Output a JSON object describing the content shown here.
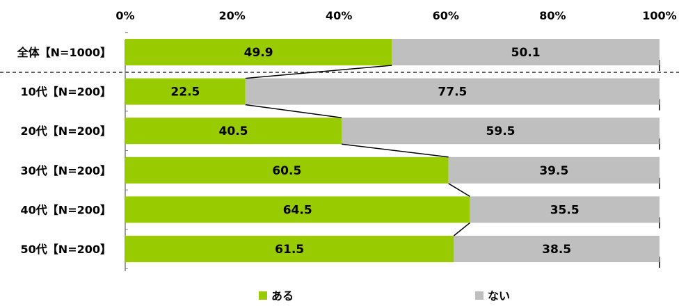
{
  "chart_data": {
    "type": "bar",
    "stacked": true,
    "orientation": "horizontal",
    "percent": true,
    "categories": [
      "全体【N=1000】",
      "10代【N=200】",
      "20代【N=200】",
      "30代【N=200】",
      "40代【N=200】",
      "50代【N=200】"
    ],
    "series": [
      {
        "name": "ある",
        "color": "#99cc00",
        "values": [
          49.9,
          22.5,
          40.5,
          60.5,
          64.5,
          61.5
        ]
      },
      {
        "name": "ない",
        "color": "#bfbfbf",
        "values": [
          50.1,
          77.5,
          59.5,
          39.5,
          35.5,
          38.5
        ]
      }
    ],
    "xaxis": {
      "ticks": [
        "0%",
        "20%",
        "40%",
        "60%",
        "80%",
        "100%"
      ],
      "range": [
        0,
        100
      ],
      "position": "top"
    },
    "series_lines": true,
    "separator_after_first": true,
    "grid": false,
    "legend_position": "bottom"
  }
}
